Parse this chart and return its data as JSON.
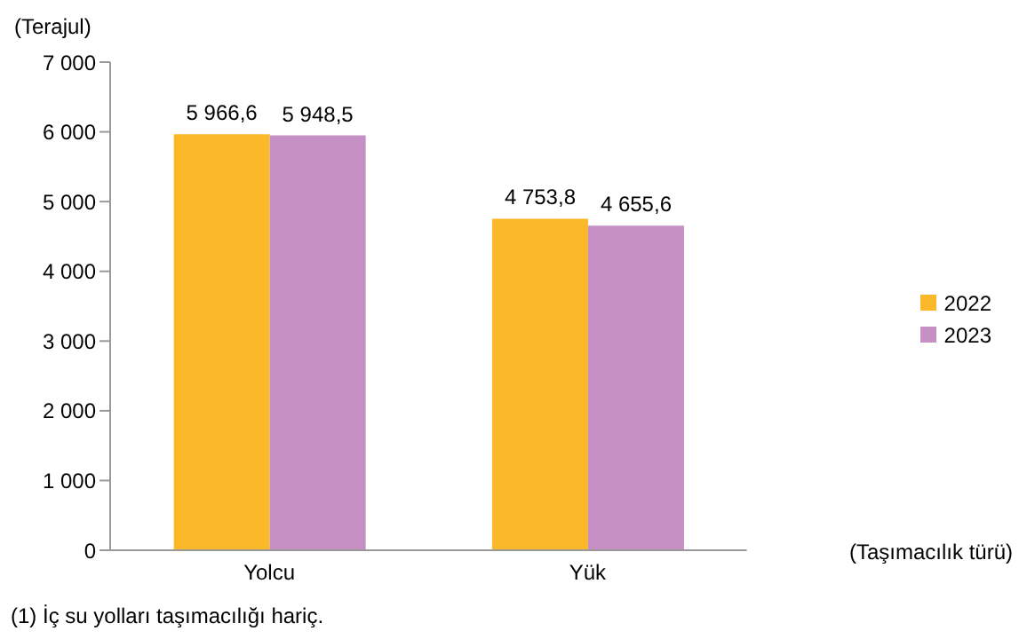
{
  "chart_data": {
    "type": "bar",
    "ylabel": "(Terajul)",
    "xlabel": "(Taşımacılık türü)",
    "categories": [
      "Yolcu",
      "Yük"
    ],
    "series": [
      {
        "name": "2022",
        "color": "#fbb829",
        "values": [
          5966.6,
          4753.8
        ],
        "value_labels": [
          "5 966,6",
          "4 753,8"
        ]
      },
      {
        "name": "2023",
        "color": "#c690c4",
        "values": [
          5948.5,
          4655.6
        ],
        "value_labels": [
          "5 948,5",
          "4 655,6"
        ]
      }
    ],
    "ylim": [
      0,
      7000
    ],
    "yticks": [
      {
        "value": 0,
        "label": "0"
      },
      {
        "value": 1000,
        "label": "1 000"
      },
      {
        "value": 2000,
        "label": "2 000"
      },
      {
        "value": 3000,
        "label": "3 000"
      },
      {
        "value": 4000,
        "label": "4 000"
      },
      {
        "value": 5000,
        "label": "5 000"
      },
      {
        "value": 6000,
        "label": "6 000"
      },
      {
        "value": 7000,
        "label": "7 000"
      }
    ],
    "grid": false,
    "legend": "right",
    "annotations": [
      "(1) İç su yolları taşımacılığı hariç."
    ]
  }
}
